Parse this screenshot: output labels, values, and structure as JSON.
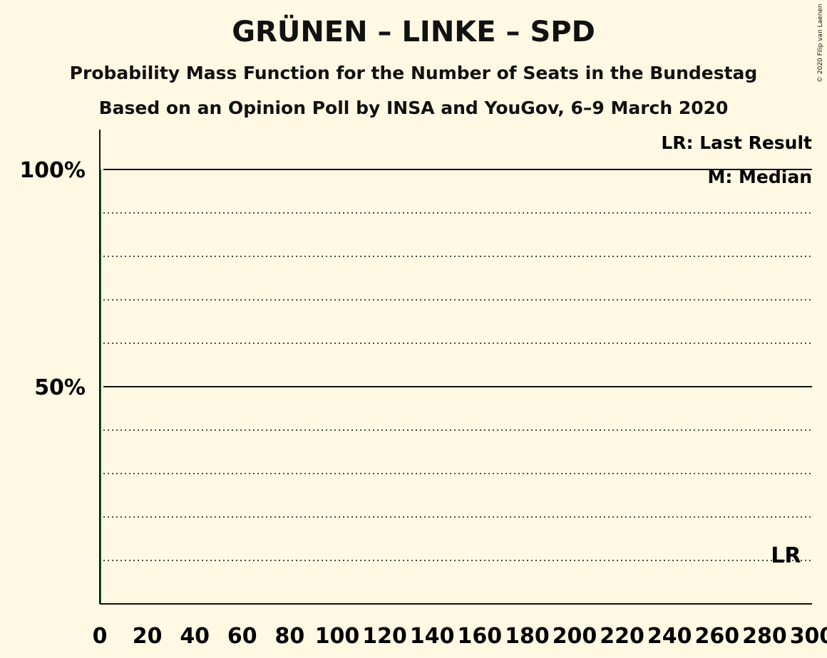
{
  "title": "GRÜNEN – LINKE – SPD",
  "subtitle": "Probability Mass Function for the Number of Seats in the Bundestag",
  "subtitle2": "Based on an Opinion Poll by INSA and YouGov, 6–9 March 2020",
  "copyright": "© 2020 Filip van Laenen",
  "legend": {
    "last_result": "LR: Last Result",
    "median": "M: Median"
  },
  "chart_data": {
    "type": "bar",
    "xlim": [
      0,
      300
    ],
    "ylim": [
      0,
      100
    ],
    "x_ticks": [
      0,
      20,
      40,
      60,
      80,
      100,
      120,
      140,
      160,
      180,
      200,
      220,
      240,
      260,
      280,
      300
    ],
    "x_tick_labels": [
      "0",
      "20",
      "40",
      "60",
      "80",
      "100",
      "120",
      "140",
      "160",
      "180",
      "200",
      "220",
      "240",
      "260",
      "280",
      "300"
    ],
    "y_major_ticks": [
      50,
      100
    ],
    "y_tick_labels": [
      "50%",
      "100%"
    ],
    "y_minor_ticks": [
      10,
      20,
      30,
      40,
      60,
      70,
      80,
      90
    ],
    "series": [
      {
        "x": [
          0
        ],
        "values": [
          100
        ],
        "color": "#1a7a3c"
      }
    ],
    "last_result": {
      "x": 289,
      "label": "LR"
    },
    "grid": true
  }
}
